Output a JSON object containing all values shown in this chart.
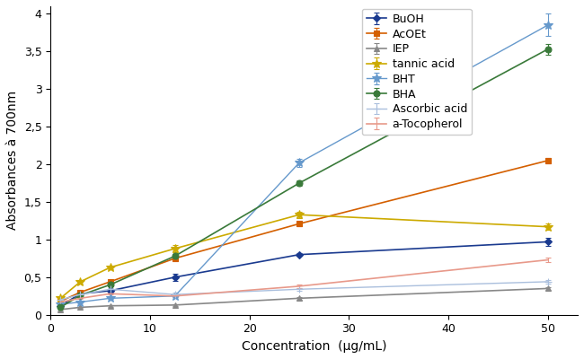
{
  "x": [
    1,
    3,
    6,
    12.5,
    25,
    50
  ],
  "series": {
    "BuOH": {
      "y": [
        0.12,
        0.28,
        0.32,
        0.5,
        0.8,
        0.97
      ],
      "yerr": [
        0.01,
        0.02,
        0.02,
        0.05,
        0.02,
        0.05
      ],
      "color": "#1a3a8f",
      "marker": "D",
      "markersize": 4,
      "linestyle": "-",
      "linewidth": 1.2
    },
    "AcOEt": {
      "y": [
        0.18,
        0.3,
        0.44,
        0.75,
        1.21,
        2.05
      ],
      "yerr": [
        0.01,
        0.02,
        0.02,
        0.03,
        0.03,
        0.04
      ],
      "color": "#d45f00",
      "marker": "s",
      "markersize": 4,
      "linestyle": "-",
      "linewidth": 1.2
    },
    "IEP": {
      "y": [
        0.07,
        0.1,
        0.12,
        0.13,
        0.22,
        0.35
      ],
      "yerr": [
        0.01,
        0.01,
        0.01,
        0.01,
        0.02,
        0.02
      ],
      "color": "#888888",
      "marker": "^",
      "markersize": 4,
      "linestyle": "-",
      "linewidth": 1.2
    },
    "tannic acid": {
      "y": [
        0.22,
        0.44,
        0.63,
        0.88,
        1.33,
        1.17
      ],
      "yerr": [
        0.01,
        0.02,
        0.02,
        0.05,
        0.04,
        0.04
      ],
      "color": "#ccaa00",
      "marker": "*",
      "markersize": 7,
      "linestyle": "-",
      "linewidth": 1.2
    },
    "BHT": {
      "y": [
        0.14,
        0.17,
        0.22,
        0.25,
        2.02,
        3.85
      ],
      "yerr": [
        0.01,
        0.01,
        0.01,
        0.02,
        0.05,
        0.15
      ],
      "color": "#6699cc",
      "marker": "*",
      "markersize": 7,
      "linestyle": "-",
      "linewidth": 1.0
    },
    "BHA": {
      "y": [
        0.1,
        0.26,
        0.4,
        0.78,
        1.75,
        3.53
      ],
      "yerr": [
        0.01,
        0.02,
        0.02,
        0.03,
        0.04,
        0.07
      ],
      "color": "#3a7a3a",
      "marker": "o",
      "markersize": 5,
      "linestyle": "-",
      "linewidth": 1.2
    },
    "Ascorbic acid": {
      "y": [
        0.2,
        0.27,
        0.34,
        0.27,
        0.34,
        0.44
      ],
      "yerr": [
        0.01,
        0.01,
        0.01,
        0.02,
        0.02,
        0.02
      ],
      "color": "#aabfdd",
      "marker": "+",
      "markersize": 6,
      "linestyle": "-",
      "linewidth": 1.0
    },
    "a-Tocopherol": {
      "y": [
        0.17,
        0.22,
        0.28,
        0.25,
        0.38,
        0.73
      ],
      "yerr": [
        0.01,
        0.01,
        0.01,
        0.01,
        0.02,
        0.03
      ],
      "color": "#e8998a",
      "marker": "None",
      "markersize": 4,
      "linestyle": "-",
      "linewidth": 1.2
    }
  },
  "xlabel": "Concentration  (µg/mL)",
  "ylabel": "Absorbances à 700nm",
  "xlim": [
    0,
    53
  ],
  "ylim": [
    0,
    4.1
  ],
  "yticks": [
    0,
    0.5,
    1,
    1.5,
    2,
    2.5,
    3,
    3.5,
    4
  ],
  "ytick_labels": [
    "0",
    "0,5",
    "1",
    "1,5",
    "2",
    "2,5",
    "3",
    "3,5",
    "4"
  ],
  "xticks": [
    0,
    10,
    20,
    30,
    40,
    50
  ],
  "legend_order": [
    "BuOH",
    "AcOEt",
    "IEP",
    "tannic acid",
    "BHT",
    "BHA",
    "Ascorbic acid",
    "a-Tocopherol"
  ],
  "axis_fontsize": 10,
  "legend_fontsize": 9
}
